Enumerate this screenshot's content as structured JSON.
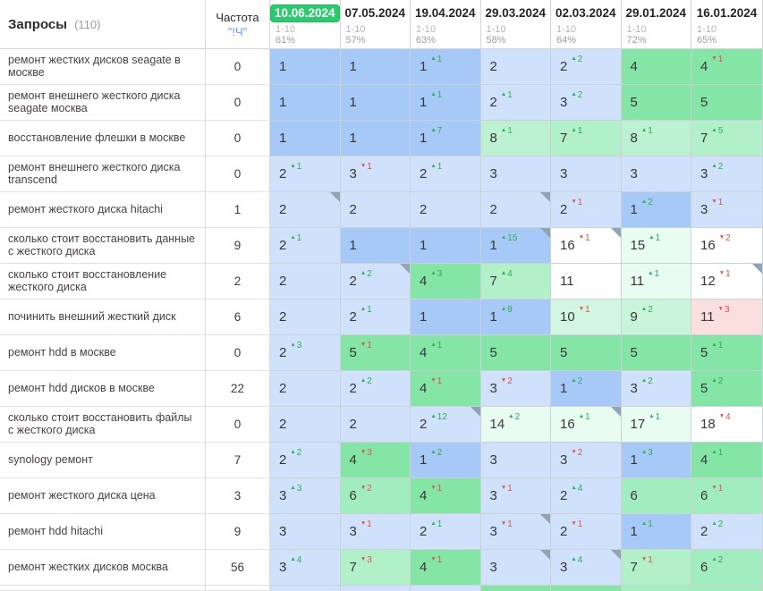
{
  "header": {
    "queries_label": "Запросы",
    "queries_count": "(110)",
    "frequency_label": "Частота",
    "frequency_sub": "\"!Ч\"",
    "columns": [
      {
        "date": "10.06.2024",
        "selected": true,
        "group": "1-10",
        "pct": "61%"
      },
      {
        "date": "07.05.2024",
        "selected": false,
        "group": "1-10",
        "pct": "57%"
      },
      {
        "date": "19.04.2024",
        "selected": false,
        "group": "1-10",
        "pct": "63%"
      },
      {
        "date": "29.03.2024",
        "selected": false,
        "group": "1-10",
        "pct": "58%"
      },
      {
        "date": "02.03.2024",
        "selected": false,
        "group": "1-10",
        "pct": "64%"
      },
      {
        "date": "29.01.2024",
        "selected": false,
        "group": "1-10",
        "pct": "72%"
      },
      {
        "date": "16.01.2024",
        "selected": false,
        "group": "1-10",
        "pct": "65%"
      }
    ]
  },
  "colors": {
    "accent_green_pill": "#2dc96f",
    "delta_up": "#2fae53",
    "delta_down": "#e0514d",
    "marker": "#90a4b8",
    "cell_bg": {
      "p1": "#a6c9f8",
      "p23": "#cfe1fb",
      "p45": "#84e5a6",
      "p6": "#a2edbf",
      "p7": "#b2f0c9",
      "p8": "#bcf2d1",
      "p9": "#c8f4d9",
      "p10": "#d3f6e2",
      "t": "#e9fcf2",
      "r": "#fbdede",
      "w": "#ffffff"
    }
  },
  "rows": [
    {
      "keyword": "ремонт жестких дисков seagate в москве",
      "frequency": "0",
      "cells": [
        {
          "v": "1",
          "bg": "p1"
        },
        {
          "v": "1",
          "bg": "p1"
        },
        {
          "v": "1",
          "d": "1",
          "dir": "up",
          "bg": "p1"
        },
        {
          "v": "2",
          "bg": "p23"
        },
        {
          "v": "2",
          "d": "2",
          "dir": "up",
          "bg": "p23"
        },
        {
          "v": "4",
          "bg": "p45"
        },
        {
          "v": "4",
          "d": "1",
          "dir": "down",
          "bg": "p45"
        }
      ]
    },
    {
      "keyword": "ремонт внешнего жесткого диска seagate москва",
      "frequency": "0",
      "cells": [
        {
          "v": "1",
          "bg": "p1"
        },
        {
          "v": "1",
          "bg": "p1"
        },
        {
          "v": "1",
          "d": "1",
          "dir": "up",
          "bg": "p1"
        },
        {
          "v": "2",
          "d": "1",
          "dir": "up",
          "bg": "p23"
        },
        {
          "v": "3",
          "d": "2",
          "dir": "up",
          "bg": "p23"
        },
        {
          "v": "5",
          "bg": "p45"
        },
        {
          "v": "5",
          "bg": "p45"
        }
      ]
    },
    {
      "keyword": "восстановление флешки в москве",
      "frequency": "0",
      "cells": [
        {
          "v": "1",
          "bg": "p1"
        },
        {
          "v": "1",
          "bg": "p1"
        },
        {
          "v": "1",
          "d": "7",
          "dir": "up",
          "bg": "p1"
        },
        {
          "v": "8",
          "d": "1",
          "dir": "up",
          "bg": "p8"
        },
        {
          "v": "7",
          "d": "1",
          "dir": "up",
          "bg": "p7"
        },
        {
          "v": "8",
          "d": "1",
          "dir": "up",
          "bg": "p8"
        },
        {
          "v": "7",
          "d": "5",
          "dir": "up",
          "bg": "p7"
        }
      ]
    },
    {
      "keyword": "ремонт внешнего жесткого диска transcend",
      "frequency": "0",
      "cells": [
        {
          "v": "2",
          "d": "1",
          "dir": "up",
          "bg": "p23"
        },
        {
          "v": "3",
          "d": "1",
          "dir": "down",
          "bg": "p23"
        },
        {
          "v": "2",
          "d": "1",
          "dir": "up",
          "bg": "p23"
        },
        {
          "v": "3",
          "bg": "p23"
        },
        {
          "v": "3",
          "bg": "p23"
        },
        {
          "v": "3",
          "bg": "p23"
        },
        {
          "v": "3",
          "d": "2",
          "dir": "up",
          "bg": "p23"
        }
      ]
    },
    {
      "keyword": "ремонт жесткого диска hitachi",
      "frequency": "1",
      "cells": [
        {
          "v": "2",
          "bg": "p23",
          "m": true
        },
        {
          "v": "2",
          "bg": "p23"
        },
        {
          "v": "2",
          "bg": "p23"
        },
        {
          "v": "2",
          "bg": "p23",
          "m": true
        },
        {
          "v": "2",
          "d": "1",
          "dir": "down",
          "bg": "p23"
        },
        {
          "v": "1",
          "d": "2",
          "dir": "up",
          "bg": "p1"
        },
        {
          "v": "3",
          "d": "1",
          "dir": "down",
          "bg": "p23"
        }
      ]
    },
    {
      "keyword": "сколько стоит восстановить данные с жесткого диска",
      "frequency": "9",
      "cells": [
        {
          "v": "2",
          "d": "1",
          "dir": "up",
          "bg": "p23"
        },
        {
          "v": "1",
          "bg": "p1"
        },
        {
          "v": "1",
          "bg": "p1"
        },
        {
          "v": "1",
          "d": "15",
          "dir": "up",
          "bg": "p1",
          "m": true
        },
        {
          "v": "16",
          "d": "1",
          "dir": "down",
          "bg": "w",
          "m": true
        },
        {
          "v": "15",
          "d": "1",
          "dir": "up",
          "bg": "t"
        },
        {
          "v": "16",
          "d": "2",
          "dir": "down",
          "bg": "w"
        }
      ]
    },
    {
      "keyword": "сколько стоит восстановление жесткого диска",
      "frequency": "2",
      "cells": [
        {
          "v": "2",
          "bg": "p23"
        },
        {
          "v": "2",
          "d": "2",
          "dir": "up",
          "bg": "p23",
          "m": true
        },
        {
          "v": "4",
          "d": "3",
          "dir": "up",
          "bg": "p45"
        },
        {
          "v": "7",
          "d": "4",
          "dir": "up",
          "bg": "p7"
        },
        {
          "v": "11",
          "bg": "w"
        },
        {
          "v": "11",
          "d": "1",
          "dir": "up",
          "bg": "t"
        },
        {
          "v": "12",
          "d": "1",
          "dir": "down",
          "bg": "w",
          "m": true
        }
      ]
    },
    {
      "keyword": "починить внешний жесткий диск",
      "frequency": "6",
      "cells": [
        {
          "v": "2",
          "bg": "p23"
        },
        {
          "v": "2",
          "d": "1",
          "dir": "up",
          "bg": "p23"
        },
        {
          "v": "1",
          "bg": "p1"
        },
        {
          "v": "1",
          "d": "9",
          "dir": "up",
          "bg": "p1"
        },
        {
          "v": "10",
          "d": "1",
          "dir": "down",
          "bg": "p10"
        },
        {
          "v": "9",
          "d": "2",
          "dir": "up",
          "bg": "p9"
        },
        {
          "v": "11",
          "d": "3",
          "dir": "down",
          "bg": "r"
        }
      ]
    },
    {
      "keyword": "ремонт hdd в москве",
      "frequency": "0",
      "cells": [
        {
          "v": "2",
          "d": "3",
          "dir": "up",
          "bg": "p23"
        },
        {
          "v": "5",
          "d": "1",
          "dir": "down",
          "bg": "p45"
        },
        {
          "v": "4",
          "d": "1",
          "dir": "up",
          "bg": "p45"
        },
        {
          "v": "5",
          "bg": "p45"
        },
        {
          "v": "5",
          "bg": "p45"
        },
        {
          "v": "5",
          "bg": "p45"
        },
        {
          "v": "5",
          "d": "1",
          "dir": "up",
          "bg": "p45"
        }
      ]
    },
    {
      "keyword": "ремонт hdd дисков в москве",
      "frequency": "22",
      "cells": [
        {
          "v": "2",
          "bg": "p23"
        },
        {
          "v": "2",
          "d": "2",
          "dir": "up",
          "bg": "p23"
        },
        {
          "v": "4",
          "d": "1",
          "dir": "down",
          "bg": "p45"
        },
        {
          "v": "3",
          "d": "2",
          "dir": "down",
          "bg": "p23"
        },
        {
          "v": "1",
          "d": "2",
          "dir": "up",
          "bg": "p1"
        },
        {
          "v": "3",
          "d": "2",
          "dir": "up",
          "bg": "p23"
        },
        {
          "v": "5",
          "d": "2",
          "dir": "up",
          "bg": "p45"
        }
      ]
    },
    {
      "keyword": "сколько стоит восстановить файлы с жесткого диска",
      "frequency": "0",
      "cells": [
        {
          "v": "2",
          "bg": "p23"
        },
        {
          "v": "2",
          "bg": "p23"
        },
        {
          "v": "2",
          "d": "12",
          "dir": "up",
          "bg": "p23",
          "m": true
        },
        {
          "v": "14",
          "d": "2",
          "dir": "up",
          "bg": "t"
        },
        {
          "v": "16",
          "d": "1",
          "dir": "up",
          "bg": "t",
          "m": true
        },
        {
          "v": "17",
          "d": "1",
          "dir": "up",
          "bg": "t"
        },
        {
          "v": "18",
          "d": "4",
          "dir": "down",
          "bg": "w"
        }
      ]
    },
    {
      "keyword": "synology ремонт",
      "frequency": "7",
      "cells": [
        {
          "v": "2",
          "d": "2",
          "dir": "up",
          "bg": "p23"
        },
        {
          "v": "4",
          "d": "3",
          "dir": "down",
          "bg": "p45"
        },
        {
          "v": "1",
          "d": "2",
          "dir": "up",
          "bg": "p1"
        },
        {
          "v": "3",
          "bg": "p23"
        },
        {
          "v": "3",
          "d": "2",
          "dir": "down",
          "bg": "p23"
        },
        {
          "v": "1",
          "d": "3",
          "dir": "up",
          "bg": "p1"
        },
        {
          "v": "4",
          "d": "1",
          "dir": "up",
          "bg": "p45"
        }
      ]
    },
    {
      "keyword": "ремонт жесткого диска цена",
      "frequency": "3",
      "cells": [
        {
          "v": "3",
          "d": "3",
          "dir": "up",
          "bg": "p23"
        },
        {
          "v": "6",
          "d": "2",
          "dir": "down",
          "bg": "p6"
        },
        {
          "v": "4",
          "d": "1",
          "dir": "down",
          "bg": "p45"
        },
        {
          "v": "3",
          "d": "1",
          "dir": "down",
          "bg": "p23"
        },
        {
          "v": "2",
          "d": "4",
          "dir": "up",
          "bg": "p23"
        },
        {
          "v": "6",
          "bg": "p6"
        },
        {
          "v": "6",
          "d": "1",
          "dir": "down",
          "bg": "p6"
        }
      ]
    },
    {
      "keyword": "ремонт hdd hitachi",
      "frequency": "9",
      "cells": [
        {
          "v": "3",
          "bg": "p23"
        },
        {
          "v": "3",
          "d": "1",
          "dir": "down",
          "bg": "p23"
        },
        {
          "v": "2",
          "d": "1",
          "dir": "up",
          "bg": "p23"
        },
        {
          "v": "3",
          "d": "1",
          "dir": "down",
          "bg": "p23",
          "m": true
        },
        {
          "v": "2",
          "d": "1",
          "dir": "down",
          "bg": "p23"
        },
        {
          "v": "1",
          "d": "1",
          "dir": "up",
          "bg": "p1"
        },
        {
          "v": "2",
          "d": "2",
          "dir": "up",
          "bg": "p23"
        }
      ]
    },
    {
      "keyword": "ремонт жестких дисков москва",
      "frequency": "56",
      "cells": [
        {
          "v": "3",
          "d": "4",
          "dir": "up",
          "bg": "p23"
        },
        {
          "v": "7",
          "d": "3",
          "dir": "down",
          "bg": "p7"
        },
        {
          "v": "4",
          "d": "1",
          "dir": "down",
          "bg": "p45"
        },
        {
          "v": "3",
          "bg": "p23",
          "m": true
        },
        {
          "v": "3",
          "d": "4",
          "dir": "up",
          "bg": "p23",
          "m": true
        },
        {
          "v": "7",
          "d": "1",
          "dir": "down",
          "bg": "p7"
        },
        {
          "v": "6",
          "d": "2",
          "dir": "up",
          "bg": "p6"
        }
      ]
    }
  ],
  "partial_row_bgs": [
    "p23",
    "p23",
    "p23",
    "p45",
    "p45",
    "p6",
    "p6"
  ]
}
